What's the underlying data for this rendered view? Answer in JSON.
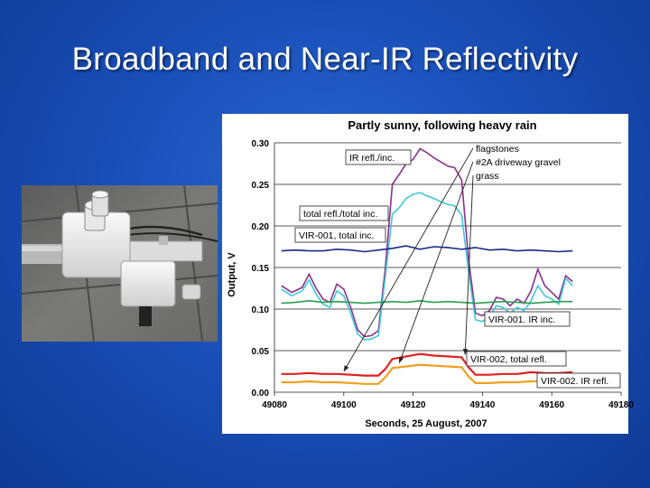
{
  "slide": {
    "title": "Broadband and Near-IR Reflectivity"
  },
  "photo": {
    "icon": "sensor-photo"
  },
  "chart_data": {
    "type": "line",
    "title": "Partly sunny, following heavy rain",
    "xlabel": "Seconds, 25 August, 2007",
    "ylabel": "Output, V",
    "xlim": [
      49080,
      49180
    ],
    "ylim": [
      0.0,
      0.3
    ],
    "xticks": [
      "49080",
      "49100",
      "49120",
      "49140",
      "49160",
      "49180"
    ],
    "yticks": [
      "0.00",
      "0.05",
      "0.10",
      "0.15",
      "0.20",
      "0.25",
      "0.30"
    ],
    "grid": "horizontal",
    "surface_legend": [
      "flagstones",
      "#2A driveway gravel",
      "grass"
    ],
    "series": [
      {
        "name": "IR refl./inc.",
        "color": "#8b2e8b",
        "x": [
          49082,
          49085,
          49088,
          49090,
          49092,
          49094,
          49096,
          49098,
          49100,
          49102,
          49104,
          49106,
          49108,
          49110,
          49112,
          49114,
          49116,
          49118,
          49120,
          49122,
          49124,
          49126,
          49128,
          49130,
          49132,
          49134,
          49136,
          49138,
          49140,
          49142,
          49144,
          49146,
          49148,
          49150,
          49152,
          49154,
          49156,
          49158,
          49160,
          49162,
          49164,
          49166
        ],
        "y": [
          0.128,
          0.12,
          0.126,
          0.142,
          0.125,
          0.112,
          0.108,
          0.13,
          0.124,
          0.102,
          0.075,
          0.067,
          0.068,
          0.074,
          0.15,
          0.25,
          0.262,
          0.275,
          0.28,
          0.293,
          0.288,
          0.282,
          0.277,
          0.272,
          0.27,
          0.255,
          0.16,
          0.095,
          0.092,
          0.098,
          0.114,
          0.112,
          0.104,
          0.112,
          0.107,
          0.122,
          0.148,
          0.128,
          0.12,
          0.112,
          0.14,
          0.133
        ]
      },
      {
        "name": "total refl./total inc.",
        "color": "#3ec8d8",
        "x": [
          49082,
          49085,
          49088,
          49090,
          49092,
          49094,
          49096,
          49098,
          49100,
          49102,
          49104,
          49106,
          49108,
          49110,
          49112,
          49114,
          49116,
          49118,
          49120,
          49122,
          49124,
          49126,
          49128,
          49130,
          49132,
          49134,
          49136,
          49138,
          49140,
          49142,
          49144,
          49146,
          49148,
          49150,
          49152,
          49154,
          49156,
          49158,
          49160,
          49162,
          49164,
          49166
        ],
        "y": [
          0.124,
          0.116,
          0.122,
          0.135,
          0.118,
          0.106,
          0.102,
          0.122,
          0.116,
          0.095,
          0.07,
          0.063,
          0.064,
          0.068,
          0.14,
          0.214,
          0.222,
          0.233,
          0.238,
          0.24,
          0.236,
          0.233,
          0.229,
          0.226,
          0.224,
          0.213,
          0.145,
          0.087,
          0.085,
          0.091,
          0.104,
          0.102,
          0.095,
          0.102,
          0.098,
          0.11,
          0.128,
          0.116,
          0.112,
          0.106,
          0.137,
          0.128
        ]
      },
      {
        "name": "VIR-001, total inc.",
        "color": "#1a2a8a",
        "x": [
          49082,
          49086,
          49090,
          49094,
          49098,
          49102,
          49106,
          49110,
          49114,
          49118,
          49122,
          49126,
          49130,
          49134,
          49138,
          49142,
          49146,
          49150,
          49154,
          49158,
          49162,
          49166
        ],
        "y": [
          0.17,
          0.171,
          0.17,
          0.17,
          0.172,
          0.171,
          0.169,
          0.171,
          0.173,
          0.176,
          0.172,
          0.175,
          0.174,
          0.172,
          0.174,
          0.171,
          0.172,
          0.17,
          0.171,
          0.17,
          0.169,
          0.17
        ]
      },
      {
        "name": "VIR-001. IR inc.",
        "color": "#2aa050",
        "x": [
          49082,
          49086,
          49090,
          49094,
          49098,
          49102,
          49106,
          49110,
          49114,
          49118,
          49122,
          49126,
          49130,
          49134,
          49138,
          49142,
          49146,
          49150,
          49154,
          49158,
          49162,
          49166
        ],
        "y": [
          0.107,
          0.108,
          0.11,
          0.108,
          0.109,
          0.108,
          0.107,
          0.108,
          0.109,
          0.108,
          0.11,
          0.108,
          0.109,
          0.108,
          0.107,
          0.108,
          0.109,
          0.108,
          0.107,
          0.108,
          0.109,
          0.109
        ]
      },
      {
        "name": "VIR-002, total refl.",
        "color": "#e02020",
        "x": [
          49082,
          49086,
          49090,
          49094,
          49098,
          49102,
          49106,
          49110,
          49112,
          49114,
          49118,
          49122,
          49126,
          49130,
          49134,
          49136,
          49138,
          49142,
          49146,
          49150,
          49154,
          49158,
          49162,
          49166
        ],
        "y": [
          0.022,
          0.022,
          0.023,
          0.022,
          0.022,
          0.021,
          0.02,
          0.02,
          0.028,
          0.04,
          0.043,
          0.046,
          0.044,
          0.043,
          0.042,
          0.03,
          0.021,
          0.021,
          0.022,
          0.022,
          0.024,
          0.023,
          0.023,
          0.024
        ]
      },
      {
        "name": "VIR-002. IR refl.",
        "color": "#f0a020",
        "x": [
          49082,
          49086,
          49090,
          49094,
          49098,
          49102,
          49106,
          49110,
          49112,
          49114,
          49118,
          49122,
          49126,
          49130,
          49134,
          49136,
          49138,
          49142,
          49146,
          49150,
          49154,
          49158,
          49162,
          49166
        ],
        "y": [
          0.012,
          0.012,
          0.013,
          0.012,
          0.012,
          0.011,
          0.01,
          0.01,
          0.018,
          0.029,
          0.031,
          0.033,
          0.032,
          0.031,
          0.03,
          0.019,
          0.011,
          0.011,
          0.012,
          0.012,
          0.013,
          0.013,
          0.013,
          0.014
        ]
      }
    ]
  }
}
